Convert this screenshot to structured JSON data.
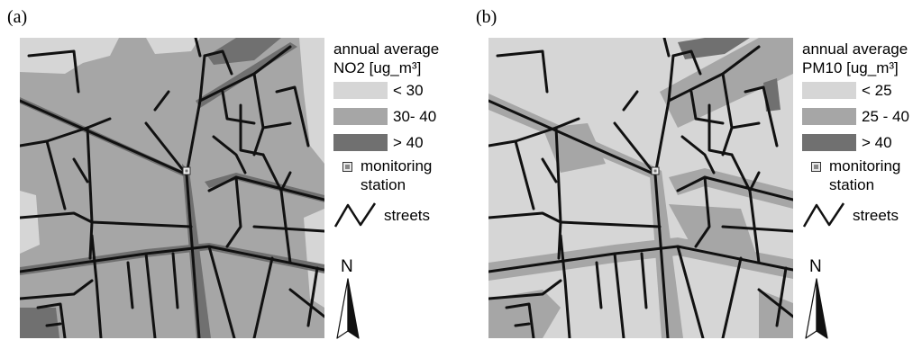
{
  "panels": [
    {
      "label": "(a)",
      "legend": {
        "title": "annual average NO2 [ug_m³]",
        "classes": [
          {
            "label": "< 30",
            "color": "#d6d6d6"
          },
          {
            "label": "30- 40",
            "color": "#a6a6a6"
          },
          {
            "label": "> 40",
            "color": "#707070"
          }
        ],
        "station_label": "monitoring station",
        "streets_label": "streets",
        "north_label": "N"
      }
    },
    {
      "label": "(b)",
      "legend": {
        "title": "annual average PM10 [ug_m³]",
        "classes": [
          {
            "label": "< 25",
            "color": "#d6d6d6"
          },
          {
            "label": "25 - 40",
            "color": "#a6a6a6"
          },
          {
            "label": "> 40",
            "color": "#707070"
          }
        ],
        "station_label": "monitoring station",
        "streets_label": "streets",
        "north_label": "N"
      }
    }
  ],
  "colors": {
    "street": "#111111",
    "light": "#d6d6d6",
    "medium": "#a6a6a6",
    "dark": "#707070"
  }
}
